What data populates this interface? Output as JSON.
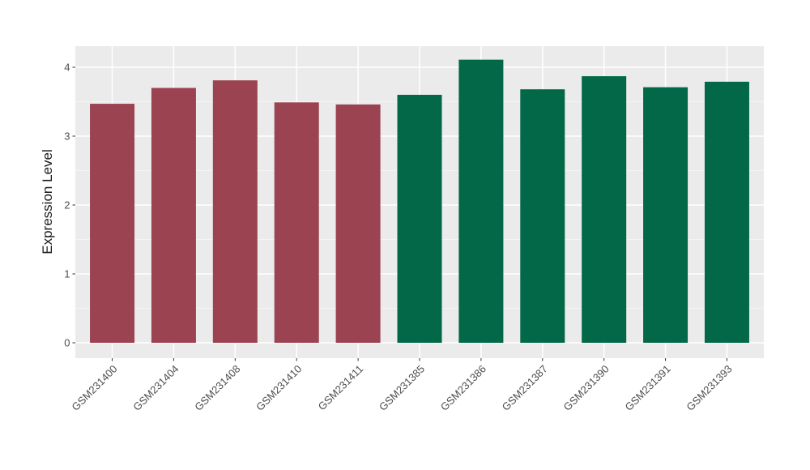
{
  "chart_data": {
    "type": "bar",
    "title": "",
    "ylabel": "Expression Level",
    "xlabel": "",
    "categories": [
      "GSM231400",
      "GSM231404",
      "GSM231408",
      "GSM231410",
      "GSM231411",
      "GSM231385",
      "GSM231386",
      "GSM231387",
      "GSM231390",
      "GSM231391",
      "GSM231393"
    ],
    "values": [
      3.47,
      3.7,
      3.81,
      3.49,
      3.46,
      3.6,
      4.11,
      3.68,
      3.87,
      3.71,
      3.79
    ],
    "bar_colors": [
      "#9C4352",
      "#9C4352",
      "#9C4352",
      "#9C4352",
      "#9C4352",
      "#026848",
      "#026848",
      "#026848",
      "#026848",
      "#026848",
      "#026848"
    ],
    "group_colors": {
      "group1": "#9C4352",
      "group2": "#026848"
    },
    "yticks": [
      0,
      1,
      2,
      3,
      4
    ],
    "ytick_labels": [
      "0",
      "1",
      "2",
      "3",
      "4"
    ],
    "minor_yticks": [
      0.5,
      1.5,
      2.5,
      3.5
    ],
    "ylim": [
      -0.21,
      4.33
    ],
    "legend": "none",
    "grid": "major horizontal and vertical white lines, minor horizontal lines, on gray panel",
    "panel_background": "#EBEBEB",
    "gridline_color": "#FFFFFF",
    "tick_color": "#333333",
    "tick_label_color": "#4D4D4D",
    "axis_title_color": "#1A1A1A"
  }
}
